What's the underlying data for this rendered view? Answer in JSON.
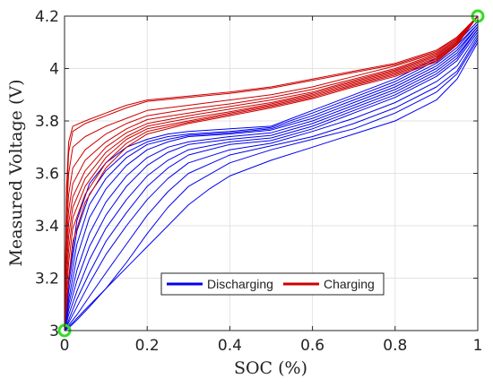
{
  "chart_data": {
    "type": "line",
    "title": "",
    "xlabel": "SOC (%)",
    "ylabel": "Measured Voltage (V)",
    "xlim": [
      0,
      1
    ],
    "ylim": [
      3.0,
      4.2
    ],
    "xticks": [
      0,
      0.2,
      0.4,
      0.6,
      0.8,
      1
    ],
    "xtick_labels": [
      "0",
      "0.2",
      "0.4",
      "0.6",
      "0.8",
      "1"
    ],
    "yticks": [
      3.0,
      3.2,
      3.4,
      3.6,
      3.8,
      4.0,
      4.2
    ],
    "ytick_labels": [
      "3",
      "3.2",
      "3.4",
      "3.6",
      "3.8",
      "4",
      "4.2"
    ],
    "grid": true,
    "legend": {
      "placement": "bottom-center",
      "entries": [
        {
          "label": "Discharging",
          "color": "#0000ee"
        },
        {
          "label": "Charging",
          "color": "#cc0000"
        }
      ]
    },
    "markers": [
      {
        "x": 0,
        "y": 3.0,
        "shape": "circle",
        "color": "#33dd22"
      },
      {
        "x": 1,
        "y": 4.2,
        "shape": "circle",
        "color": "#33dd22"
      }
    ],
    "series": [
      {
        "group": "Discharging",
        "color": "#0000ee",
        "x": [
          0,
          0.01,
          0.03,
          0.06,
          0.1,
          0.15,
          0.2,
          0.25,
          0.3,
          0.4,
          0.5,
          0.6,
          0.7,
          0.8,
          0.9,
          0.95,
          1
        ],
        "y": [
          3.0,
          3.2,
          3.42,
          3.56,
          3.64,
          3.7,
          3.73,
          3.75,
          3.76,
          3.77,
          3.78,
          3.84,
          3.9,
          3.96,
          4.04,
          4.1,
          4.18
        ]
      },
      {
        "group": "Discharging",
        "color": "#0000ee",
        "x": [
          0,
          0.01,
          0.03,
          0.06,
          0.1,
          0.15,
          0.2,
          0.25,
          0.3,
          0.4,
          0.5,
          0.6,
          0.7,
          0.8,
          0.9,
          0.95,
          1
        ],
        "y": [
          3.0,
          3.18,
          3.38,
          3.52,
          3.61,
          3.68,
          3.72,
          3.74,
          3.75,
          3.76,
          3.775,
          3.83,
          3.89,
          3.95,
          4.03,
          4.09,
          4.17
        ]
      },
      {
        "group": "Discharging",
        "color": "#0000ee",
        "x": [
          0,
          0.01,
          0.03,
          0.06,
          0.1,
          0.15,
          0.2,
          0.25,
          0.3,
          0.4,
          0.5,
          0.6,
          0.7,
          0.8,
          0.9,
          0.95,
          1
        ],
        "y": [
          3.0,
          3.15,
          3.33,
          3.48,
          3.58,
          3.66,
          3.71,
          3.73,
          3.745,
          3.755,
          3.77,
          3.82,
          3.88,
          3.94,
          4.02,
          4.08,
          4.17
        ]
      },
      {
        "group": "Discharging",
        "color": "#0000ee",
        "x": [
          0,
          0.01,
          0.03,
          0.06,
          0.1,
          0.15,
          0.2,
          0.25,
          0.3,
          0.4,
          0.5,
          0.6,
          0.7,
          0.8,
          0.9,
          0.95,
          1
        ],
        "y": [
          3.0,
          3.12,
          3.28,
          3.43,
          3.54,
          3.63,
          3.69,
          3.72,
          3.74,
          3.75,
          3.765,
          3.81,
          3.87,
          3.93,
          4.01,
          4.07,
          4.16
        ]
      },
      {
        "group": "Discharging",
        "color": "#0000ee",
        "x": [
          0,
          0.01,
          0.03,
          0.06,
          0.1,
          0.15,
          0.2,
          0.25,
          0.3,
          0.4,
          0.5,
          0.6,
          0.7,
          0.8,
          0.9,
          0.95,
          1
        ],
        "y": [
          3.0,
          3.1,
          3.23,
          3.37,
          3.49,
          3.59,
          3.66,
          3.7,
          3.72,
          3.74,
          3.755,
          3.8,
          3.86,
          3.92,
          4.0,
          4.06,
          4.16
        ]
      },
      {
        "group": "Discharging",
        "color": "#0000ee",
        "x": [
          0,
          0.01,
          0.03,
          0.06,
          0.1,
          0.15,
          0.2,
          0.25,
          0.3,
          0.4,
          0.5,
          0.6,
          0.7,
          0.8,
          0.9,
          0.95,
          1
        ],
        "y": [
          3.0,
          3.08,
          3.19,
          3.32,
          3.44,
          3.55,
          3.63,
          3.68,
          3.71,
          3.73,
          3.745,
          3.79,
          3.85,
          3.91,
          3.99,
          4.05,
          4.15
        ]
      },
      {
        "group": "Discharging",
        "color": "#0000ee",
        "x": [
          0,
          0.01,
          0.03,
          0.06,
          0.1,
          0.15,
          0.2,
          0.25,
          0.3,
          0.4,
          0.5,
          0.6,
          0.7,
          0.8,
          0.9,
          0.95,
          1
        ],
        "y": [
          3.0,
          3.06,
          3.15,
          3.27,
          3.39,
          3.5,
          3.59,
          3.65,
          3.69,
          3.72,
          3.735,
          3.78,
          3.84,
          3.9,
          3.98,
          4.04,
          4.15
        ]
      },
      {
        "group": "Discharging",
        "color": "#0000ee",
        "x": [
          0,
          0.01,
          0.03,
          0.06,
          0.1,
          0.15,
          0.2,
          0.25,
          0.3,
          0.4,
          0.5,
          0.6,
          0.7,
          0.8,
          0.9,
          0.95,
          1
        ],
        "y": [
          3.0,
          3.04,
          3.12,
          3.22,
          3.34,
          3.45,
          3.55,
          3.62,
          3.67,
          3.71,
          3.725,
          3.77,
          3.83,
          3.89,
          3.97,
          4.03,
          4.14
        ]
      },
      {
        "group": "Discharging",
        "color": "#0000ee",
        "x": [
          0,
          0.01,
          0.03,
          0.06,
          0.1,
          0.15,
          0.2,
          0.25,
          0.3,
          0.4,
          0.5,
          0.6,
          0.7,
          0.8,
          0.9,
          0.95,
          1
        ],
        "y": [
          3.0,
          3.03,
          3.09,
          3.18,
          3.29,
          3.4,
          3.5,
          3.58,
          3.64,
          3.69,
          3.715,
          3.76,
          3.81,
          3.87,
          3.95,
          4.01,
          4.13
        ]
      },
      {
        "group": "Discharging",
        "color": "#0000ee",
        "x": [
          0,
          0.01,
          0.03,
          0.06,
          0.1,
          0.15,
          0.2,
          0.25,
          0.3,
          0.4,
          0.5,
          0.6,
          0.7,
          0.8,
          0.9,
          0.95,
          1
        ],
        "y": [
          3.0,
          3.02,
          3.06,
          3.13,
          3.22,
          3.33,
          3.44,
          3.53,
          3.6,
          3.67,
          3.705,
          3.74,
          3.79,
          3.85,
          3.93,
          3.99,
          4.12
        ]
      },
      {
        "group": "Discharging",
        "color": "#0000ee",
        "x": [
          0,
          0.01,
          0.03,
          0.06,
          0.1,
          0.15,
          0.2,
          0.25,
          0.3,
          0.4,
          0.5,
          0.6,
          0.7,
          0.8,
          0.9,
          0.95,
          1
        ],
        "y": [
          3.0,
          3.01,
          3.04,
          3.09,
          3.16,
          3.26,
          3.37,
          3.47,
          3.55,
          3.64,
          3.69,
          3.73,
          3.77,
          3.83,
          3.91,
          3.98,
          4.11
        ]
      },
      {
        "group": "Discharging",
        "color": "#0000ee",
        "x": [
          0,
          0.02,
          0.05,
          0.1,
          0.15,
          0.2,
          0.25,
          0.3,
          0.35,
          0.4,
          0.5,
          0.6,
          0.7,
          0.8,
          0.9,
          0.95,
          1
        ],
        "y": [
          3.0,
          3.03,
          3.08,
          3.16,
          3.24,
          3.32,
          3.4,
          3.48,
          3.54,
          3.59,
          3.65,
          3.7,
          3.75,
          3.8,
          3.88,
          3.96,
          4.1
        ]
      },
      {
        "group": "Charging",
        "color": "#cc0000",
        "x": [
          0,
          0.005,
          0.01,
          0.02,
          0.05,
          0.1,
          0.15,
          0.2,
          0.3,
          0.4,
          0.5,
          0.6,
          0.7,
          0.8,
          0.9,
          0.95,
          1
        ],
        "y": [
          3.0,
          3.55,
          3.72,
          3.78,
          3.8,
          3.83,
          3.86,
          3.88,
          3.895,
          3.91,
          3.93,
          3.96,
          3.99,
          4.02,
          4.07,
          4.12,
          4.2
        ]
      },
      {
        "group": "Charging",
        "color": "#cc0000",
        "x": [
          0,
          0.005,
          0.01,
          0.02,
          0.05,
          0.1,
          0.15,
          0.2,
          0.3,
          0.4,
          0.5,
          0.6,
          0.7,
          0.8,
          0.9,
          0.95,
          1
        ],
        "y": [
          3.0,
          3.5,
          3.68,
          3.76,
          3.79,
          3.82,
          3.85,
          3.875,
          3.89,
          3.905,
          3.925,
          3.955,
          3.985,
          4.015,
          4.065,
          4.12,
          4.2
        ]
      },
      {
        "group": "Charging",
        "color": "#cc0000",
        "x": [
          0,
          0.005,
          0.01,
          0.02,
          0.05,
          0.1,
          0.15,
          0.2,
          0.3,
          0.4,
          0.5,
          0.6,
          0.7,
          0.8,
          0.9,
          0.95,
          1
        ],
        "y": [
          3.0,
          3.45,
          3.6,
          3.7,
          3.74,
          3.78,
          3.81,
          3.84,
          3.86,
          3.88,
          3.9,
          3.93,
          3.97,
          4.01,
          4.06,
          4.115,
          4.2
        ]
      },
      {
        "group": "Charging",
        "color": "#cc0000",
        "x": [
          0,
          0.005,
          0.01,
          0.02,
          0.05,
          0.1,
          0.15,
          0.2,
          0.3,
          0.4,
          0.5,
          0.6,
          0.7,
          0.8,
          0.9,
          0.95,
          1
        ],
        "y": [
          3.0,
          3.4,
          3.52,
          3.62,
          3.69,
          3.75,
          3.79,
          3.82,
          3.845,
          3.865,
          3.89,
          3.92,
          3.96,
          4.0,
          4.055,
          4.11,
          4.2
        ]
      },
      {
        "group": "Charging",
        "color": "#cc0000",
        "x": [
          0,
          0.005,
          0.01,
          0.02,
          0.05,
          0.1,
          0.15,
          0.2,
          0.3,
          0.4,
          0.5,
          0.6,
          0.7,
          0.8,
          0.9,
          0.95,
          1
        ],
        "y": [
          3.0,
          3.35,
          3.46,
          3.56,
          3.65,
          3.72,
          3.77,
          3.805,
          3.83,
          3.855,
          3.88,
          3.91,
          3.955,
          3.995,
          4.05,
          4.11,
          4.2
        ]
      },
      {
        "group": "Charging",
        "color": "#cc0000",
        "x": [
          0,
          0.005,
          0.01,
          0.02,
          0.05,
          0.1,
          0.15,
          0.2,
          0.3,
          0.4,
          0.5,
          0.6,
          0.7,
          0.8,
          0.9,
          0.95,
          1
        ],
        "y": [
          3.0,
          3.3,
          3.41,
          3.51,
          3.61,
          3.7,
          3.755,
          3.79,
          3.82,
          3.845,
          3.87,
          3.905,
          3.95,
          3.99,
          4.045,
          4.105,
          4.2
        ]
      },
      {
        "group": "Charging",
        "color": "#cc0000",
        "x": [
          0,
          0.005,
          0.01,
          0.02,
          0.05,
          0.1,
          0.15,
          0.2,
          0.3,
          0.4,
          0.5,
          0.6,
          0.7,
          0.8,
          0.9,
          0.95,
          1
        ],
        "y": [
          3.0,
          3.25,
          3.36,
          3.47,
          3.58,
          3.68,
          3.74,
          3.78,
          3.81,
          3.835,
          3.865,
          3.9,
          3.945,
          3.985,
          4.04,
          4.1,
          4.2
        ]
      },
      {
        "group": "Charging",
        "color": "#cc0000",
        "x": [
          0,
          0.005,
          0.01,
          0.02,
          0.05,
          0.1,
          0.15,
          0.2,
          0.3,
          0.4,
          0.5,
          0.6,
          0.7,
          0.8,
          0.9,
          0.95,
          1
        ],
        "y": [
          3.0,
          3.2,
          3.31,
          3.43,
          3.55,
          3.66,
          3.73,
          3.77,
          3.8,
          3.83,
          3.86,
          3.895,
          3.94,
          3.98,
          4.035,
          4.1,
          4.2
        ]
      },
      {
        "group": "Charging",
        "color": "#cc0000",
        "x": [
          0,
          0.005,
          0.01,
          0.02,
          0.05,
          0.1,
          0.15,
          0.2,
          0.3,
          0.4,
          0.5,
          0.6,
          0.7,
          0.8,
          0.9,
          0.95,
          1
        ],
        "y": [
          3.0,
          3.15,
          3.26,
          3.39,
          3.52,
          3.64,
          3.715,
          3.76,
          3.795,
          3.825,
          3.855,
          3.89,
          3.935,
          3.975,
          4.03,
          4.095,
          4.2
        ]
      },
      {
        "group": "Charging",
        "color": "#cc0000",
        "x": [
          0,
          0.005,
          0.01,
          0.02,
          0.05,
          0.1,
          0.15,
          0.2,
          0.3,
          0.4,
          0.5,
          0.6,
          0.7,
          0.8,
          0.9,
          0.95,
          1
        ],
        "y": [
          3.0,
          3.1,
          3.2,
          3.34,
          3.49,
          3.62,
          3.7,
          3.75,
          3.79,
          3.82,
          3.85,
          3.885,
          3.93,
          3.97,
          4.025,
          4.09,
          4.2
        ]
      }
    ]
  }
}
